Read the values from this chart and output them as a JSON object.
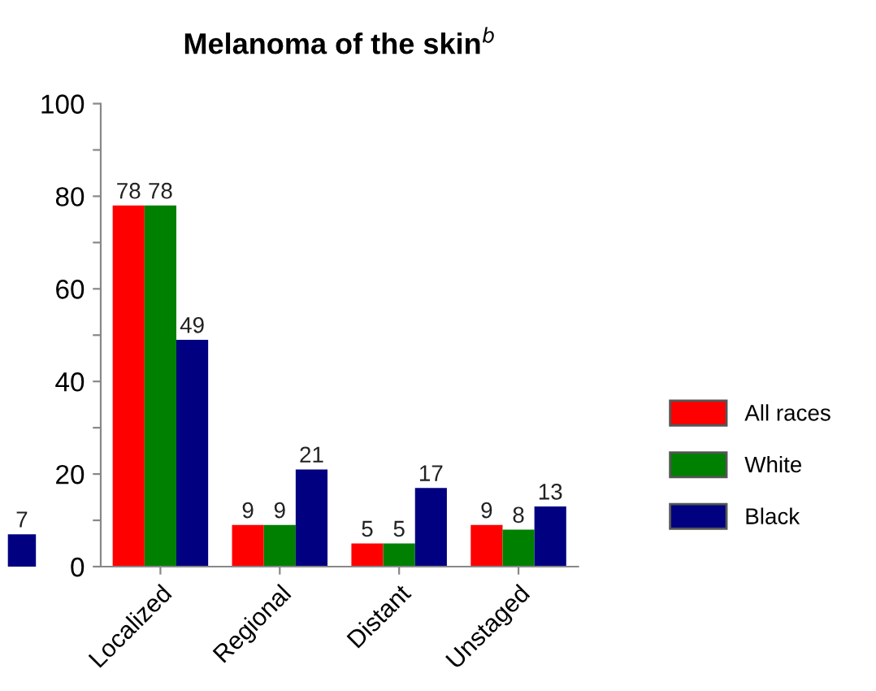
{
  "chart_data": [
    {
      "type": "bar",
      "categories": [
        null
      ],
      "series": [
        {
          "color": "#000080",
          "values": [
            7
          ]
        }
      ],
      "ylim": [
        0,
        100
      ],
      "tick_labels": false,
      "data_labels": true
    },
    {
      "type": "bar",
      "title": "Melanoma of the skin$^{b}$",
      "categories": [
        "Localized",
        "Regional",
        "Distant",
        "Unstaged"
      ],
      "series": [
        {
          "name": "All races",
          "color": "#ff0000",
          "values": [
            78,
            9,
            5,
            9
          ]
        },
        {
          "name": "White",
          "color": "#008000",
          "values": [
            78,
            9,
            5,
            8
          ]
        },
        {
          "name": "Black",
          "color": "#000080",
          "values": [
            49,
            21,
            17,
            13
          ]
        }
      ],
      "ylim": [
        0,
        100
      ],
      "yticks": [
        0,
        {
          "value": 10,
          "label": null
        },
        20,
        {
          "value": 30,
          "label": null
        },
        40,
        {
          "value": 50,
          "label": null
        },
        60,
        {
          "value": 70,
          "label": null
        },
        80,
        {
          "value": 90,
          "label": null
        },
        100
      ],
      "data_labels": true,
      "legend": "right",
      "grid": false
    }
  ]
}
